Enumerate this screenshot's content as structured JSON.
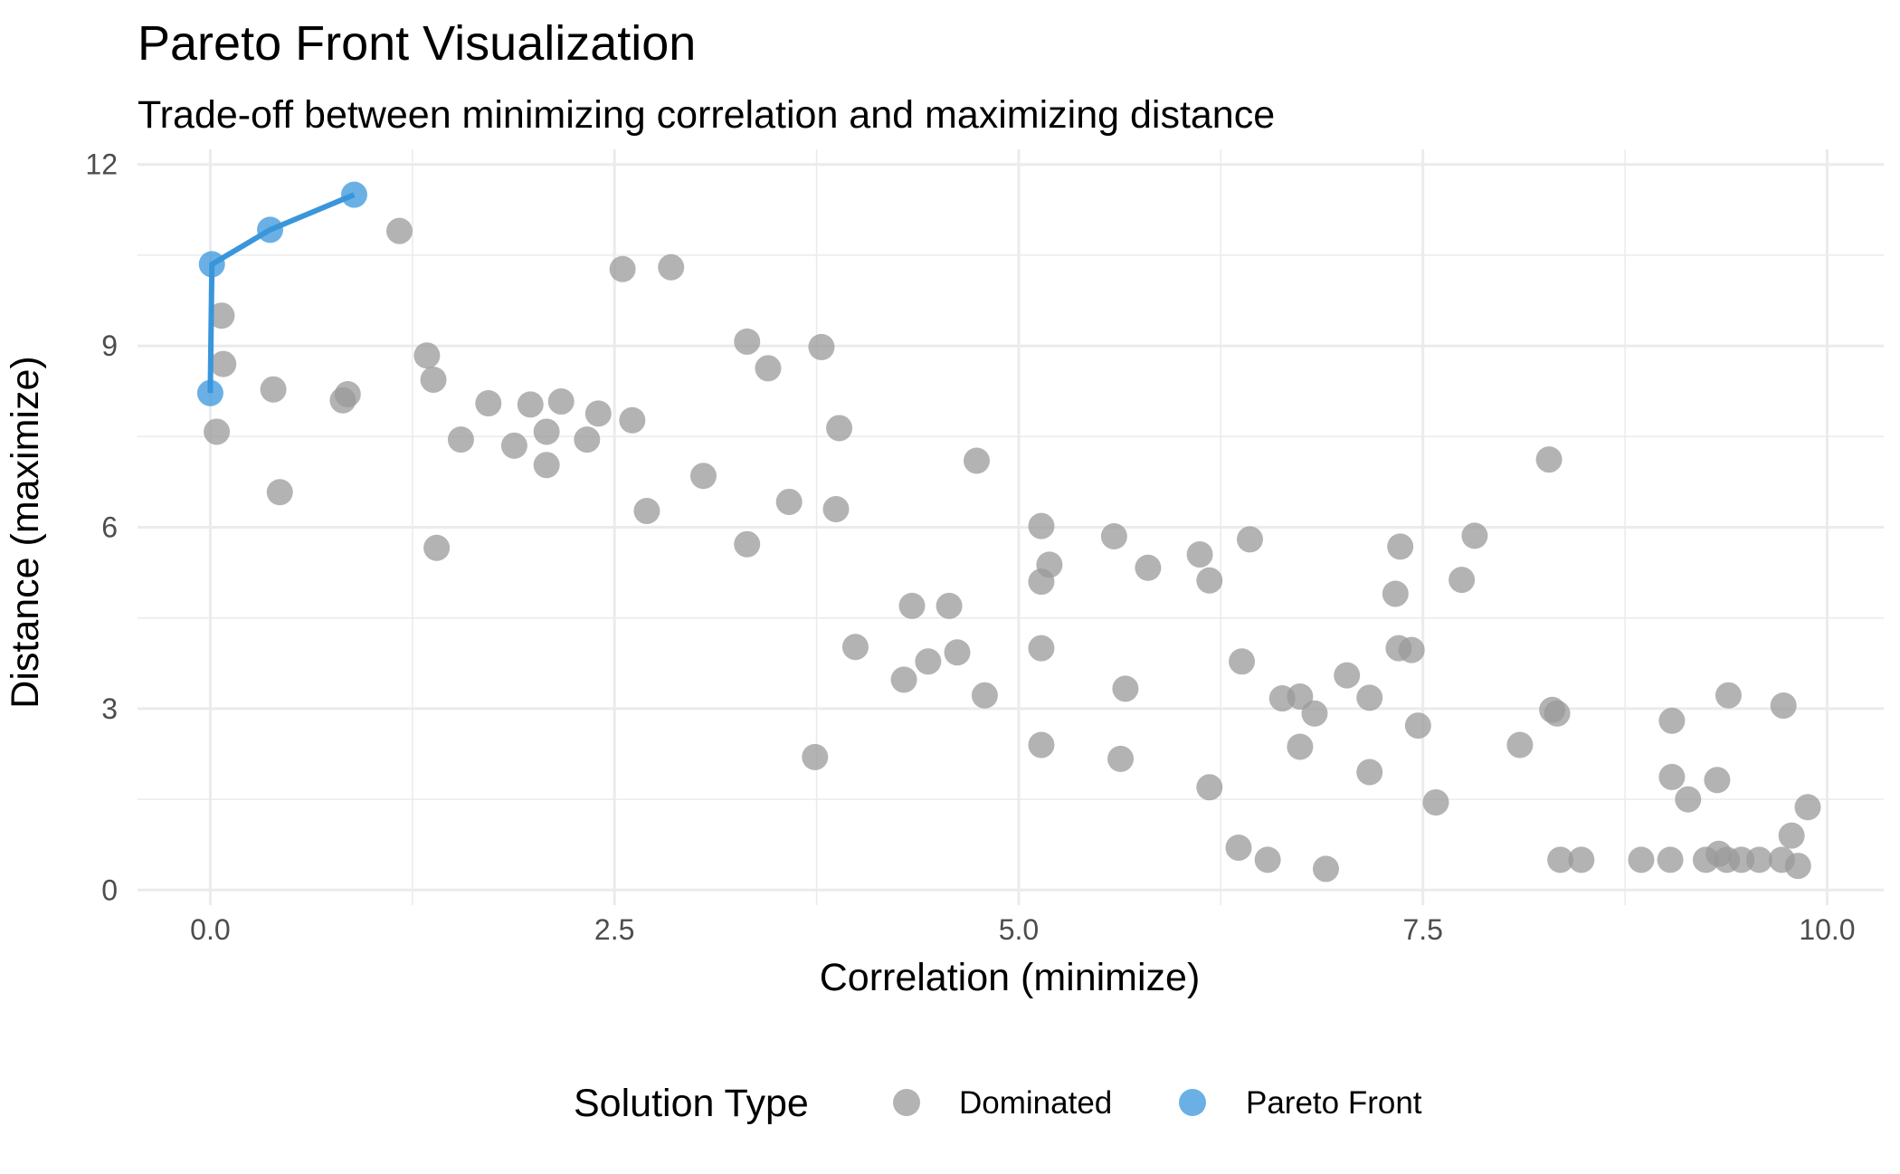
{
  "chart_data": {
    "type": "scatter",
    "title": "Pareto Front Visualization",
    "subtitle": "Trade-off between minimizing correlation and maximizing distance",
    "xlabel": "Correlation (minimize)",
    "ylabel": "Distance (maximize)",
    "xlim": [
      -0.45,
      10.35
    ],
    "ylim": [
      -0.25,
      12.25
    ],
    "x_ticks": [
      0,
      2.5,
      5,
      7.5,
      10
    ],
    "x_tick_labels": [
      "0.0",
      "2.5",
      "5.0",
      "7.5",
      "10.0"
    ],
    "y_ticks": [
      0,
      3,
      6,
      9,
      12
    ],
    "y_tick_labels": [
      "0",
      "3",
      "6",
      "9",
      "12"
    ],
    "grid": true,
    "legend": {
      "title": "Solution Type",
      "position": "bottom"
    },
    "series": [
      {
        "name": "Dominated",
        "color": "#999999",
        "points": [
          [
            1.17,
            10.9
          ],
          [
            0.07,
            9.5
          ],
          [
            0.08,
            8.7
          ],
          [
            0.39,
            8.28
          ],
          [
            0.85,
            8.2
          ],
          [
            0.82,
            8.1
          ],
          [
            0.04,
            7.58
          ],
          [
            0.43,
            6.58
          ],
          [
            1.34,
            8.84
          ],
          [
            1.38,
            8.44
          ],
          [
            1.72,
            8.05
          ],
          [
            1.55,
            7.45
          ],
          [
            1.98,
            8.03
          ],
          [
            2.17,
            8.08
          ],
          [
            1.88,
            7.35
          ],
          [
            2.08,
            7.58
          ],
          [
            2.08,
            7.03
          ],
          [
            2.33,
            7.45
          ],
          [
            2.4,
            7.88
          ],
          [
            2.61,
            7.77
          ],
          [
            1.4,
            5.66
          ],
          [
            2.55,
            10.27
          ],
          [
            2.85,
            10.3
          ],
          [
            3.32,
            9.07
          ],
          [
            3.45,
            8.63
          ],
          [
            3.78,
            8.98
          ],
          [
            3.89,
            7.64
          ],
          [
            3.05,
            6.85
          ],
          [
            3.58,
            6.42
          ],
          [
            3.87,
            6.3
          ],
          [
            2.7,
            6.27
          ],
          [
            3.32,
            5.72
          ],
          [
            4.74,
            7.1
          ],
          [
            3.99,
            4.02
          ],
          [
            4.34,
            4.7
          ],
          [
            4.57,
            4.7
          ],
          [
            4.29,
            3.48
          ],
          [
            4.44,
            3.78
          ],
          [
            4.62,
            3.93
          ],
          [
            4.79,
            3.22
          ],
          [
            3.74,
            2.2
          ],
          [
            5.14,
            6.02
          ],
          [
            5.19,
            5.38
          ],
          [
            5.14,
            5.1
          ],
          [
            5.14,
            4.0
          ],
          [
            5.14,
            2.4
          ],
          [
            5.59,
            5.85
          ],
          [
            5.8,
            5.33
          ],
          [
            5.66,
            3.33
          ],
          [
            5.63,
            2.17
          ],
          [
            6.12,
            5.55
          ],
          [
            6.43,
            5.8
          ],
          [
            6.18,
            5.12
          ],
          [
            6.38,
            3.78
          ],
          [
            6.18,
            1.7
          ],
          [
            6.36,
            0.7
          ],
          [
            6.54,
            0.5
          ],
          [
            6.9,
            0.35
          ],
          [
            6.63,
            3.17
          ],
          [
            6.74,
            3.2
          ],
          [
            6.83,
            2.92
          ],
          [
            6.74,
            2.37
          ],
          [
            7.03,
            3.55
          ],
          [
            7.17,
            3.18
          ],
          [
            7.17,
            1.95
          ],
          [
            7.36,
            5.68
          ],
          [
            7.33,
            4.9
          ],
          [
            7.35,
            4.0
          ],
          [
            7.43,
            3.97
          ],
          [
            7.47,
            2.72
          ],
          [
            7.58,
            1.45
          ],
          [
            7.74,
            5.13
          ],
          [
            7.82,
            5.86
          ],
          [
            8.28,
            7.12
          ],
          [
            8.3,
            2.98
          ],
          [
            8.33,
            2.92
          ],
          [
            8.1,
            2.4
          ],
          [
            8.35,
            0.5
          ],
          [
            8.48,
            0.5
          ],
          [
            9.04,
            2.8
          ],
          [
            9.04,
            1.87
          ],
          [
            9.14,
            1.5
          ],
          [
            9.32,
            1.82
          ],
          [
            9.39,
            3.22
          ],
          [
            9.73,
            3.05
          ],
          [
            9.78,
            0.9
          ],
          [
            9.88,
            1.37
          ],
          [
            8.85,
            0.5
          ],
          [
            9.03,
            0.5
          ],
          [
            9.25,
            0.5
          ],
          [
            9.33,
            0.6
          ],
          [
            9.38,
            0.5
          ],
          [
            9.47,
            0.5
          ],
          [
            9.58,
            0.5
          ],
          [
            9.72,
            0.5
          ],
          [
            9.82,
            0.4
          ]
        ]
      },
      {
        "name": "Pareto Front",
        "color": "#3a96db",
        "points": [
          [
            0.0,
            8.22
          ],
          [
            0.01,
            10.35
          ],
          [
            0.37,
            10.92
          ],
          [
            0.89,
            11.5
          ]
        ],
        "line": true
      }
    ]
  }
}
